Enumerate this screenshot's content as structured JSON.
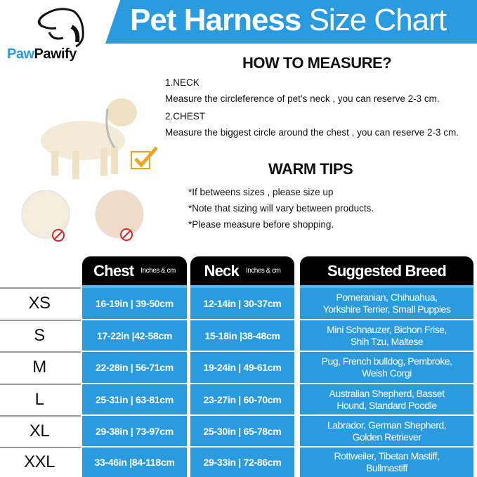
{
  "brand": {
    "name_part1": "Paw",
    "name_part2": "Pawify"
  },
  "title": {
    "bold": "Pet Harness",
    "light": " Size Chart"
  },
  "how_to": {
    "heading": "HOW TO MEASURE?",
    "items": [
      {
        "label": "1.NECK",
        "text": "Measure the circleference of pet’s neck , you can reserve 2-3 cm."
      },
      {
        "label": "2.CHEST",
        "text": "Measure the biggest circle around the chest , you can reserve 2-3 cm."
      }
    ]
  },
  "tips": {
    "heading": "WARM TIPS",
    "items": [
      "*If betweens sizes , please size up",
      "*Note that sizing will vary between products.",
      "*Please measure before shopping."
    ]
  },
  "table": {
    "headers": {
      "chest": "Chest",
      "chest_unit": "Inches & cm",
      "neck": "Neck",
      "neck_unit": "Inches & cm",
      "breed": "Suggested Breed"
    },
    "rows": [
      {
        "size": "XS",
        "chest": "16-19in | 39-50cm",
        "neck": "12-14in | 30-37cm",
        "breed": "Pomeranian, Chihuahua, Yorkshire Terrier, Small Puppies"
      },
      {
        "size": "S",
        "chest": "17-22in |42-58cm",
        "neck": "15-18in |38-48cm",
        "breed": "Mini Schnauzer, Bichon Frise, Shih Tzu, Maltese"
      },
      {
        "size": "M",
        "chest": "22-28in | 56-71cm",
        "neck": "19-24in | 49-61cm",
        "breed": "Pug, French bulldog, Pembroke, Weish Corgi"
      },
      {
        "size": "L",
        "chest": "25-31in | 63-81cm",
        "neck": "23-27in | 60-70cm",
        "breed": "Australian Shepherd, Basset Hound, Standard Poodle"
      },
      {
        "size": "XL",
        "chest": "29-38in | 73-97cm",
        "neck": "25-30in | 65-78cm",
        "breed": "Labrador, German Shepherd, Golden Retriever"
      },
      {
        "size": "XXL",
        "chest": "33-46in |84-118cm",
        "neck": "29-33in | 72-86cm",
        "breed": "Rottweiler, Tibetan Mastiff, Bullmastiff"
      }
    ]
  },
  "colors": {
    "accent": "#2b9be0",
    "header": "#000000"
  },
  "icons": [
    "dog-logo-icon",
    "checkmark-icon",
    "prohibited-icon"
  ]
}
